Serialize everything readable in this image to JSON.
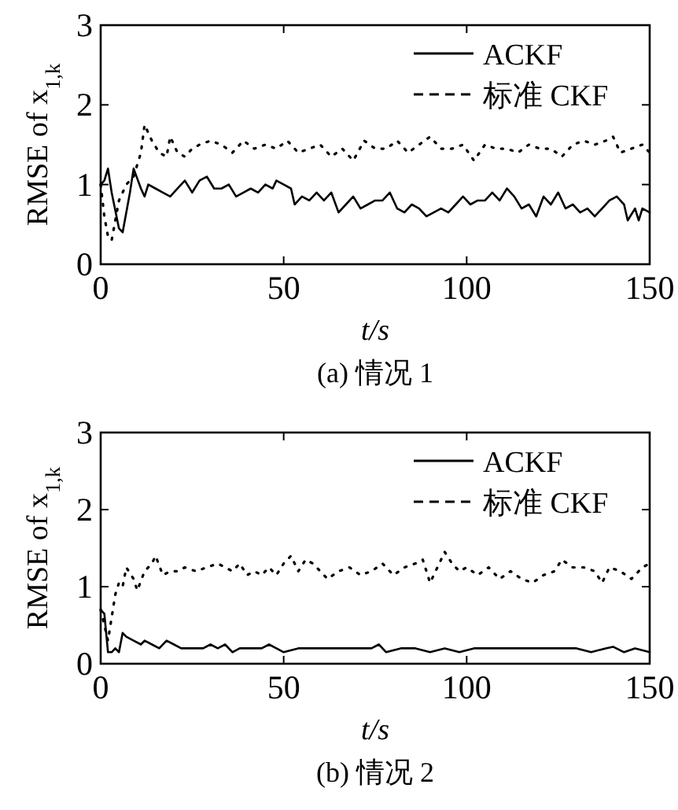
{
  "chart_data": [
    {
      "type": "line",
      "title": "(a)  情况 1",
      "xlabel": "t/s",
      "ylabel": "RMSE of x$_{1,k}$",
      "xlim": [
        0,
        150
      ],
      "ylim": [
        0,
        3
      ],
      "xticks": [
        0,
        50,
        100,
        150
      ],
      "yticks": [
        0,
        1,
        2,
        3
      ],
      "grid": false,
      "legend": "top right",
      "series": [
        {
          "name": "ACKF",
          "color": "#000000",
          "line_style": "solid",
          "x": [
            0,
            1,
            2,
            3,
            5,
            6,
            8,
            9,
            11,
            12,
            13,
            15,
            17,
            19,
            21,
            23,
            25,
            27,
            29,
            31,
            33,
            35,
            37,
            39,
            41,
            43,
            45,
            47,
            48,
            50,
            52,
            53,
            55,
            57,
            59,
            61,
            63,
            65,
            67,
            69,
            71,
            73,
            75,
            77,
            79,
            81,
            83,
            85,
            87,
            89,
            91,
            93,
            95,
            97,
            99,
            101,
            103,
            105,
            107,
            109,
            111,
            113,
            115,
            117,
            119,
            121,
            123,
            125,
            127,
            129,
            131,
            133,
            135,
            137,
            139,
            141,
            143,
            144,
            146,
            147,
            148,
            150
          ],
          "values": [
            1.0,
            1.05,
            1.2,
            0.9,
            0.45,
            0.4,
            0.9,
            1.2,
            0.95,
            0.85,
            1.0,
            0.95,
            0.9,
            0.85,
            0.95,
            1.05,
            0.9,
            1.05,
            1.1,
            0.95,
            0.95,
            1.0,
            0.85,
            0.9,
            0.95,
            0.9,
            1.0,
            0.95,
            1.05,
            1.0,
            0.95,
            0.75,
            0.85,
            0.8,
            0.9,
            0.8,
            0.9,
            0.65,
            0.75,
            0.85,
            0.7,
            0.75,
            0.8,
            0.8,
            0.9,
            0.7,
            0.65,
            0.75,
            0.7,
            0.6,
            0.65,
            0.7,
            0.65,
            0.75,
            0.85,
            0.75,
            0.8,
            0.8,
            0.9,
            0.8,
            0.95,
            0.85,
            0.7,
            0.75,
            0.6,
            0.85,
            0.75,
            0.9,
            0.7,
            0.75,
            0.65,
            0.7,
            0.6,
            0.7,
            0.8,
            0.85,
            0.75,
            0.55,
            0.7,
            0.55,
            0.7,
            0.65
          ]
        },
        {
          "name": "标准 CKF",
          "color": "#000000",
          "line_style": "dotted",
          "x": [
            0,
            1,
            2,
            3,
            5,
            7,
            9,
            11,
            12,
            14,
            16,
            18,
            19,
            21,
            23,
            25,
            27,
            30,
            33,
            36,
            39,
            42,
            45,
            48,
            51,
            54,
            57,
            60,
            63,
            66,
            69,
            72,
            75,
            78,
            81,
            84,
            87,
            90,
            93,
            96,
            99,
            102,
            105,
            108,
            111,
            114,
            117,
            120,
            123,
            126,
            129,
            132,
            135,
            138,
            140,
            142,
            145,
            148,
            150
          ],
          "values": [
            1.0,
            0.6,
            0.35,
            0.3,
            0.8,
            1.0,
            1.1,
            1.4,
            1.75,
            1.55,
            1.4,
            1.35,
            1.6,
            1.4,
            1.35,
            1.45,
            1.5,
            1.55,
            1.5,
            1.4,
            1.55,
            1.45,
            1.5,
            1.45,
            1.55,
            1.4,
            1.45,
            1.5,
            1.35,
            1.45,
            1.3,
            1.55,
            1.45,
            1.45,
            1.55,
            1.4,
            1.5,
            1.6,
            1.45,
            1.45,
            1.5,
            1.3,
            1.5,
            1.45,
            1.45,
            1.4,
            1.5,
            1.45,
            1.45,
            1.35,
            1.5,
            1.55,
            1.5,
            1.55,
            1.6,
            1.4,
            1.45,
            1.5,
            1.4
          ]
        }
      ]
    },
    {
      "type": "line",
      "title": "(b)  情况 2",
      "xlabel": "t/s",
      "ylabel": "RMSE of x$_{1,k}$",
      "xlim": [
        0,
        150
      ],
      "ylim": [
        0,
        3
      ],
      "xticks": [
        0,
        50,
        100,
        150
      ],
      "yticks": [
        0,
        1,
        2,
        3
      ],
      "grid": false,
      "legend": "top right",
      "series": [
        {
          "name": "ACKF",
          "color": "#000000",
          "line_style": "solid",
          "x": [
            0,
            1,
            2,
            3,
            4,
            5,
            6,
            7,
            9,
            11,
            12,
            14,
            16,
            18,
            20,
            22,
            24,
            26,
            28,
            30,
            32,
            34,
            36,
            38,
            40,
            42,
            44,
            46,
            48,
            50,
            54,
            58,
            62,
            66,
            70,
            74,
            76,
            78,
            82,
            86,
            90,
            94,
            98,
            102,
            106,
            110,
            114,
            118,
            122,
            126,
            130,
            134,
            138,
            140,
            143,
            146,
            150
          ],
          "values": [
            0.7,
            0.65,
            0.15,
            0.15,
            0.2,
            0.15,
            0.4,
            0.35,
            0.3,
            0.25,
            0.3,
            0.25,
            0.2,
            0.3,
            0.25,
            0.2,
            0.2,
            0.2,
            0.2,
            0.25,
            0.2,
            0.25,
            0.15,
            0.2,
            0.2,
            0.2,
            0.2,
            0.25,
            0.2,
            0.15,
            0.2,
            0.2,
            0.2,
            0.2,
            0.2,
            0.2,
            0.25,
            0.15,
            0.2,
            0.2,
            0.15,
            0.2,
            0.15,
            0.2,
            0.2,
            0.2,
            0.2,
            0.2,
            0.2,
            0.2,
            0.2,
            0.15,
            0.2,
            0.22,
            0.15,
            0.2,
            0.15
          ]
        },
        {
          "name": "标准 CKF",
          "color": "#000000",
          "line_style": "dotted",
          "x": [
            0,
            1,
            2,
            3,
            4,
            5,
            6,
            7,
            9,
            10,
            12,
            14,
            15,
            17,
            19,
            21,
            23,
            26,
            29,
            32,
            34,
            36,
            38,
            40,
            42,
            44,
            46,
            48,
            50,
            52,
            54,
            56,
            58,
            60,
            62,
            65,
            68,
            71,
            74,
            77,
            80,
            83,
            86,
            88,
            90,
            92,
            94,
            96,
            98,
            100,
            103,
            106,
            109,
            112,
            115,
            118,
            121,
            124,
            126,
            129,
            132,
            135,
            137,
            139,
            142,
            145,
            148,
            150
          ],
          "values": [
            0.7,
            0.5,
            0.3,
            0.6,
            0.9,
            1.05,
            1.0,
            1.25,
            1.1,
            0.95,
            1.2,
            1.3,
            1.4,
            1.15,
            1.2,
            1.2,
            1.25,
            1.2,
            1.25,
            1.3,
            1.25,
            1.2,
            1.3,
            1.15,
            1.2,
            1.15,
            1.25,
            1.15,
            1.3,
            1.4,
            1.2,
            1.35,
            1.3,
            1.2,
            1.1,
            1.2,
            1.25,
            1.15,
            1.2,
            1.3,
            1.15,
            1.25,
            1.3,
            1.35,
            1.05,
            1.25,
            1.45,
            1.3,
            1.2,
            1.25,
            1.15,
            1.25,
            1.1,
            1.2,
            1.1,
            1.05,
            1.15,
            1.2,
            1.35,
            1.25,
            1.25,
            1.2,
            1.05,
            1.25,
            1.2,
            1.1,
            1.25,
            1.3
          ]
        }
      ]
    }
  ]
}
